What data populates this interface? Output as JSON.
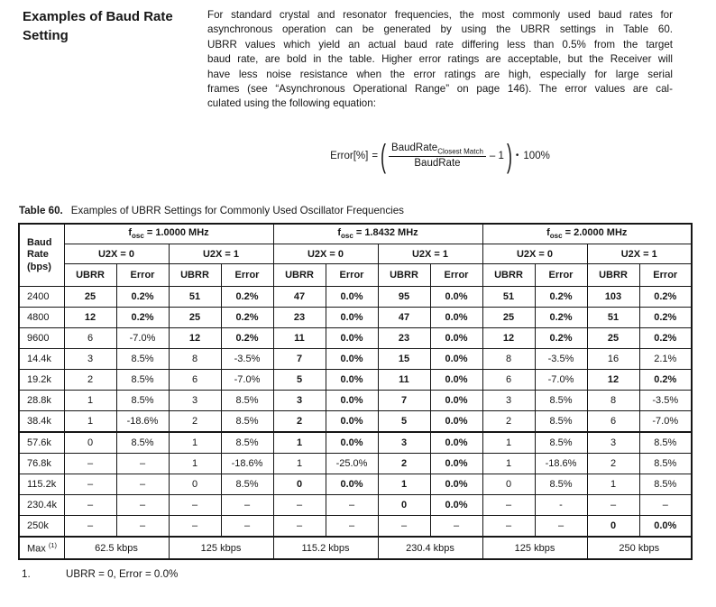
{
  "section": {
    "heading": "Examples of Baud Rate Setting"
  },
  "intro": {
    "lines": [
      "For standard crystal and resonator frequencies, the most commonly used baud rates for",
      "asynchronous operation can be generated by using the UBRR settings in Table 60.",
      "UBRR values which yield an actual baud rate differing less than 0.5% from the target",
      "baud rate, are bold in the table. Higher error ratings are acceptable, but the Receiver will",
      "have less noise resistance when the error ratings are high, especially for large serial",
      "frames (see “Asynchronous Operational Range” on page 146). The error values are cal-",
      "culated using the following equation:"
    ]
  },
  "equation": {
    "lhs": "Error[%]",
    "equals": "=",
    "open_paren": "(",
    "numerator_base": "BaudRate",
    "numerator_sub": "Closest Match",
    "denominator": "BaudRate",
    "minus_one": "– 1",
    "close_paren": ")",
    "dot": "•",
    "tail": "100%"
  },
  "table": {
    "caption_label": "Table 60.",
    "caption_text": "Examples of UBRR Settings for Commonly Used Oscillator Frequencies",
    "baud_header": [
      "Baud",
      "Rate",
      "(bps)"
    ],
    "groups": [
      {
        "prefix": "f",
        "sub": "osc",
        "rest": " = 1.0000 MHz"
      },
      {
        "prefix": "f",
        "sub": "osc",
        "rest": " = 1.8432 MHz"
      },
      {
        "prefix": "f",
        "sub": "osc",
        "rest": " = 2.0000 MHz"
      }
    ],
    "u2x_labels": [
      "U2X = 0",
      "U2X = 1"
    ],
    "sub_headers": [
      "UBRR",
      "Error"
    ],
    "rows": [
      {
        "baud": "2400",
        "cells": [
          {
            "v": "25",
            "b": true
          },
          {
            "v": "0.2%",
            "b": true
          },
          {
            "v": "51",
            "b": true
          },
          {
            "v": "0.2%",
            "b": true
          },
          {
            "v": "47",
            "b": true
          },
          {
            "v": "0.0%",
            "b": true
          },
          {
            "v": "95",
            "b": true
          },
          {
            "v": "0.0%",
            "b": true
          },
          {
            "v": "51",
            "b": true
          },
          {
            "v": "0.2%",
            "b": true
          },
          {
            "v": "103",
            "b": true
          },
          {
            "v": "0.2%",
            "b": true
          }
        ]
      },
      {
        "baud": "4800",
        "cells": [
          {
            "v": "12",
            "b": true
          },
          {
            "v": "0.2%",
            "b": true
          },
          {
            "v": "25",
            "b": true
          },
          {
            "v": "0.2%",
            "b": true
          },
          {
            "v": "23",
            "b": true
          },
          {
            "v": "0.0%",
            "b": true
          },
          {
            "v": "47",
            "b": true
          },
          {
            "v": "0.0%",
            "b": true
          },
          {
            "v": "25",
            "b": true
          },
          {
            "v": "0.2%",
            "b": true
          },
          {
            "v": "51",
            "b": true
          },
          {
            "v": "0.2%",
            "b": true
          }
        ]
      },
      {
        "baud": "9600",
        "cells": [
          {
            "v": "6"
          },
          {
            "v": "-7.0%"
          },
          {
            "v": "12",
            "b": true
          },
          {
            "v": "0.2%",
            "b": true
          },
          {
            "v": "11",
            "b": true
          },
          {
            "v": "0.0%",
            "b": true
          },
          {
            "v": "23",
            "b": true
          },
          {
            "v": "0.0%",
            "b": true
          },
          {
            "v": "12",
            "b": true
          },
          {
            "v": "0.2%",
            "b": true
          },
          {
            "v": "25",
            "b": true
          },
          {
            "v": "0.2%",
            "b": true
          }
        ]
      },
      {
        "baud": "14.4k",
        "cells": [
          {
            "v": "3"
          },
          {
            "v": "8.5%"
          },
          {
            "v": "8"
          },
          {
            "v": "-3.5%"
          },
          {
            "v": "7",
            "b": true
          },
          {
            "v": "0.0%",
            "b": true
          },
          {
            "v": "15",
            "b": true
          },
          {
            "v": "0.0%",
            "b": true
          },
          {
            "v": "8"
          },
          {
            "v": "-3.5%"
          },
          {
            "v": "16"
          },
          {
            "v": "2.1%"
          }
        ]
      },
      {
        "baud": "19.2k",
        "cells": [
          {
            "v": "2"
          },
          {
            "v": "8.5%"
          },
          {
            "v": "6"
          },
          {
            "v": "-7.0%"
          },
          {
            "v": "5",
            "b": true
          },
          {
            "v": "0.0%",
            "b": true
          },
          {
            "v": "11",
            "b": true
          },
          {
            "v": "0.0%",
            "b": true
          },
          {
            "v": "6"
          },
          {
            "v": "-7.0%"
          },
          {
            "v": "12",
            "b": true
          },
          {
            "v": "0.2%",
            "b": true
          }
        ]
      },
      {
        "baud": "28.8k",
        "cells": [
          {
            "v": "1"
          },
          {
            "v": "8.5%"
          },
          {
            "v": "3"
          },
          {
            "v": "8.5%"
          },
          {
            "v": "3",
            "b": true
          },
          {
            "v": "0.0%",
            "b": true
          },
          {
            "v": "7",
            "b": true
          },
          {
            "v": "0.0%",
            "b": true
          },
          {
            "v": "3"
          },
          {
            "v": "8.5%"
          },
          {
            "v": "8"
          },
          {
            "v": "-3.5%"
          }
        ]
      },
      {
        "baud": "38.4k",
        "cells": [
          {
            "v": "1"
          },
          {
            "v": "-18.6%"
          },
          {
            "v": "2"
          },
          {
            "v": "8.5%"
          },
          {
            "v": "2",
            "b": true
          },
          {
            "v": "0.0%",
            "b": true
          },
          {
            "v": "5",
            "b": true
          },
          {
            "v": "0.0%",
            "b": true
          },
          {
            "v": "2"
          },
          {
            "v": "8.5%"
          },
          {
            "v": "6"
          },
          {
            "v": "-7.0%"
          }
        ]
      },
      {
        "baud": "57.6k",
        "thick": true,
        "cells": [
          {
            "v": "0"
          },
          {
            "v": "8.5%"
          },
          {
            "v": "1"
          },
          {
            "v": "8.5%"
          },
          {
            "v": "1",
            "b": true
          },
          {
            "v": "0.0%",
            "b": true
          },
          {
            "v": "3",
            "b": true
          },
          {
            "v": "0.0%",
            "b": true
          },
          {
            "v": "1"
          },
          {
            "v": "8.5%"
          },
          {
            "v": "3"
          },
          {
            "v": "8.5%"
          }
        ]
      },
      {
        "baud": "76.8k",
        "cells": [
          {
            "v": "–"
          },
          {
            "v": "–"
          },
          {
            "v": "1"
          },
          {
            "v": "-18.6%"
          },
          {
            "v": "1"
          },
          {
            "v": "-25.0%"
          },
          {
            "v": "2",
            "b": true
          },
          {
            "v": "0.0%",
            "b": true
          },
          {
            "v": "1"
          },
          {
            "v": "-18.6%"
          },
          {
            "v": "2"
          },
          {
            "v": "8.5%"
          }
        ]
      },
      {
        "baud": "115.2k",
        "cells": [
          {
            "v": "–"
          },
          {
            "v": "–"
          },
          {
            "v": "0"
          },
          {
            "v": "8.5%"
          },
          {
            "v": "0",
            "b": true
          },
          {
            "v": "0.0%",
            "b": true
          },
          {
            "v": "1",
            "b": true
          },
          {
            "v": "0.0%",
            "b": true
          },
          {
            "v": "0"
          },
          {
            "v": "8.5%"
          },
          {
            "v": "1"
          },
          {
            "v": "8.5%"
          }
        ]
      },
      {
        "baud": "230.4k",
        "cells": [
          {
            "v": "–"
          },
          {
            "v": "–"
          },
          {
            "v": "–"
          },
          {
            "v": "–"
          },
          {
            "v": "–"
          },
          {
            "v": "–"
          },
          {
            "v": "0",
            "b": true
          },
          {
            "v": "0.0%",
            "b": true
          },
          {
            "v": "–"
          },
          {
            "v": "-"
          },
          {
            "v": "–"
          },
          {
            "v": "–"
          }
        ]
      },
      {
        "baud": "250k",
        "cells": [
          {
            "v": "–"
          },
          {
            "v": "–"
          },
          {
            "v": "–"
          },
          {
            "v": "–"
          },
          {
            "v": "–"
          },
          {
            "v": "–"
          },
          {
            "v": "–"
          },
          {
            "v": "–"
          },
          {
            "v": "–"
          },
          {
            "v": "–"
          },
          {
            "v": "0",
            "b": true
          },
          {
            "v": "0.0%",
            "b": true
          }
        ]
      }
    ],
    "max_row": {
      "label": "Max",
      "sup": "(1)",
      "values": [
        "62.5 kbps",
        "125 kbps",
        "115.2 kbps",
        "230.4 kbps",
        "125 kbps",
        "250 kbps"
      ]
    }
  },
  "footnote": {
    "number": "1.",
    "text": "UBRR = 0, Error = 0.0%"
  }
}
